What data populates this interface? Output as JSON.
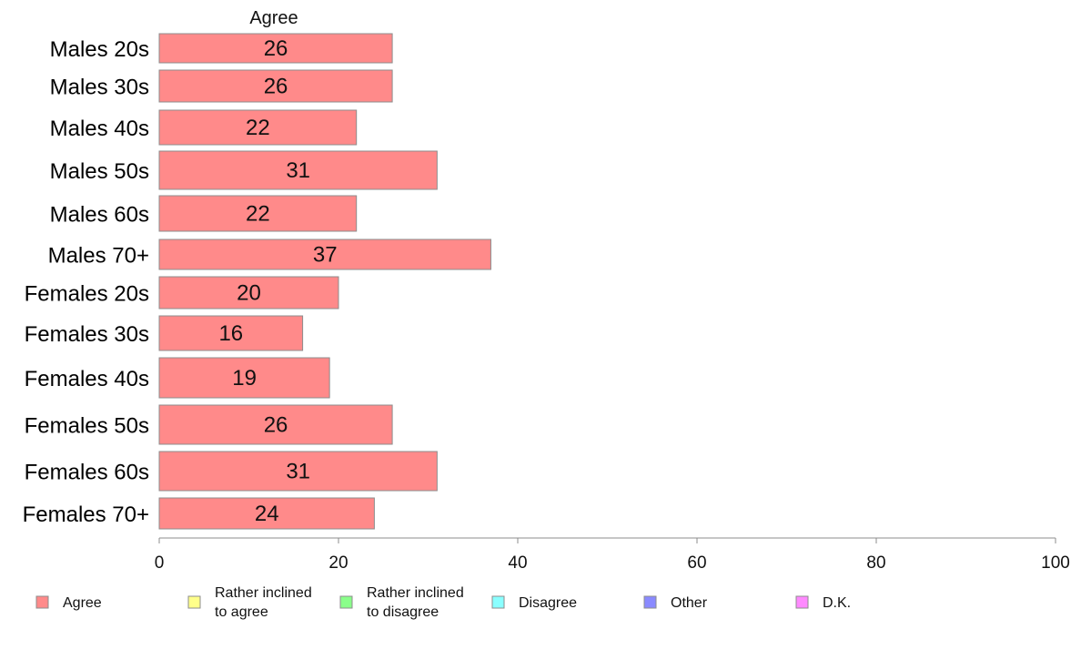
{
  "chart_data": {
    "type": "bar",
    "orientation": "horizontal",
    "series_header": "Agree",
    "categories": [
      "Males 20s",
      "Males 30s",
      "Males 40s",
      "Males 50s",
      "Males 60s",
      "Males 70+",
      "Females 20s",
      "Females 30s",
      "Females 40s",
      "Females 50s",
      "Females 60s",
      "Females 70+"
    ],
    "series": [
      {
        "name": "Agree",
        "color": "#ff8a8a",
        "values": [
          26,
          26,
          22,
          31,
          22,
          37,
          20,
          16,
          19,
          26,
          31,
          24
        ]
      }
    ],
    "xlim": [
      0,
      100
    ],
    "xticks": [
      0,
      20,
      40,
      60,
      80,
      100
    ],
    "grid": false,
    "legend_position": "bottom",
    "legend": [
      {
        "label": "Agree",
        "color": "#ff8a8a"
      },
      {
        "label": "Rather inclined\nto agree",
        "color": "#ffff8a"
      },
      {
        "label": "Rather inclined\nto disagree",
        "color": "#8aff8a"
      },
      {
        "label": "Disagree",
        "color": "#8affff"
      },
      {
        "label": "Other",
        "color": "#8a8aff"
      },
      {
        "label": "D.K.",
        "color": "#ff8aff"
      }
    ]
  }
}
